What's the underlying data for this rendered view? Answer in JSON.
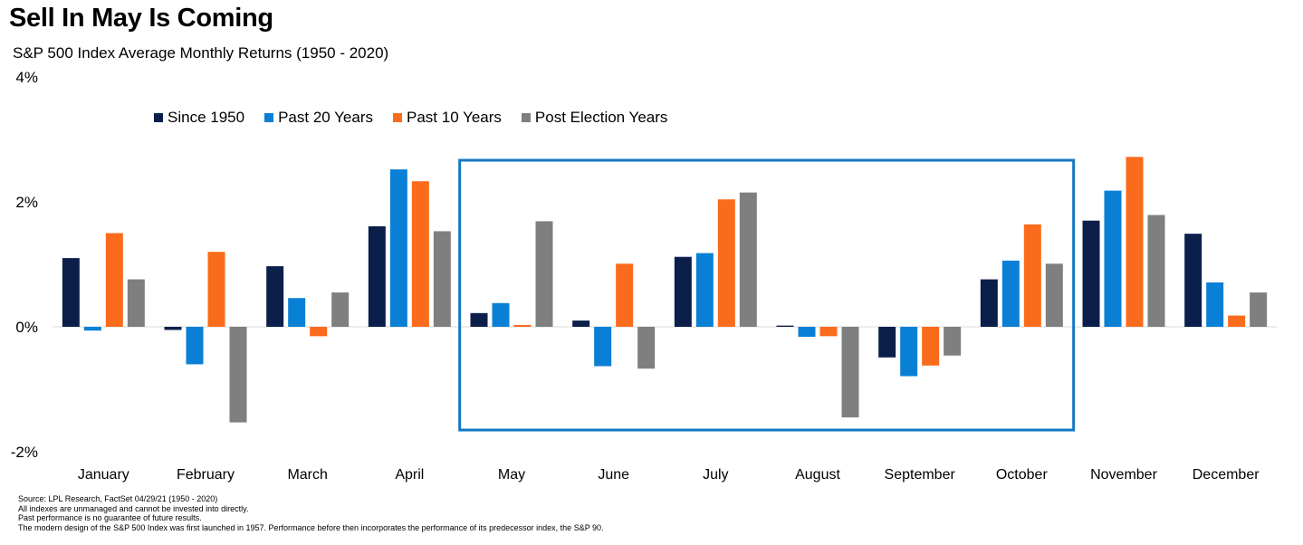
{
  "title": "Sell In May Is Coming",
  "subtitle": "S&P 500 Index Average Monthly Returns (1950 - 2020)",
  "colors": {
    "since1950": "#0c1f4b",
    "past20": "#0a7fd6",
    "past10": "#fb6b1c",
    "postElection": "#7f7f7f",
    "highlight": "#1478c4"
  },
  "chart_data": {
    "type": "bar",
    "categories": [
      "January",
      "February",
      "March",
      "April",
      "May",
      "June",
      "July",
      "August",
      "September",
      "October",
      "November",
      "December"
    ],
    "series": [
      {
        "name": "Since 1950",
        "color": "#0c1f4b",
        "values": [
          1.1,
          -0.05,
          0.97,
          1.61,
          0.22,
          0.1,
          1.12,
          0.02,
          -0.49,
          0.76,
          1.7,
          1.49
        ]
      },
      {
        "name": "Past 20 Years",
        "color": "#0a7fd6",
        "values": [
          -0.06,
          -0.6,
          0.46,
          2.52,
          0.38,
          -0.63,
          1.18,
          -0.16,
          -0.79,
          1.06,
          2.18,
          0.71
        ]
      },
      {
        "name": "Past 10 Years",
        "color": "#fb6b1c",
        "values": [
          1.5,
          1.2,
          -0.15,
          2.33,
          0.03,
          1.01,
          2.04,
          -0.15,
          -0.62,
          1.64,
          2.72,
          0.18
        ]
      },
      {
        "name": "Post Election Years",
        "color": "#7f7f7f",
        "values": [
          0.76,
          -1.53,
          0.55,
          1.53,
          1.69,
          -0.67,
          2.15,
          -1.45,
          -0.46,
          1.01,
          1.79,
          0.55
        ]
      }
    ],
    "yticks": [
      "4%",
      "2%",
      "0%",
      "-2%"
    ],
    "ytick_values": [
      4,
      2,
      0,
      -2
    ],
    "ylim": [
      -2,
      4
    ],
    "legend_position": "top-left",
    "grid": false,
    "highlight_range": [
      "May",
      "October"
    ]
  },
  "footnotes": [
    "Source: LPL Research, FactSet 04/29/21  (1950 - 2020)",
    "All indexes are unmanaged  and cannot be invested  into directly.",
    "Past performance is no guarantee of future results.",
    "The modern design of the S&P 500 Index was first launched in 1957. Performance before then incorporates the performance of its  predecessor index, the S&P 90."
  ]
}
